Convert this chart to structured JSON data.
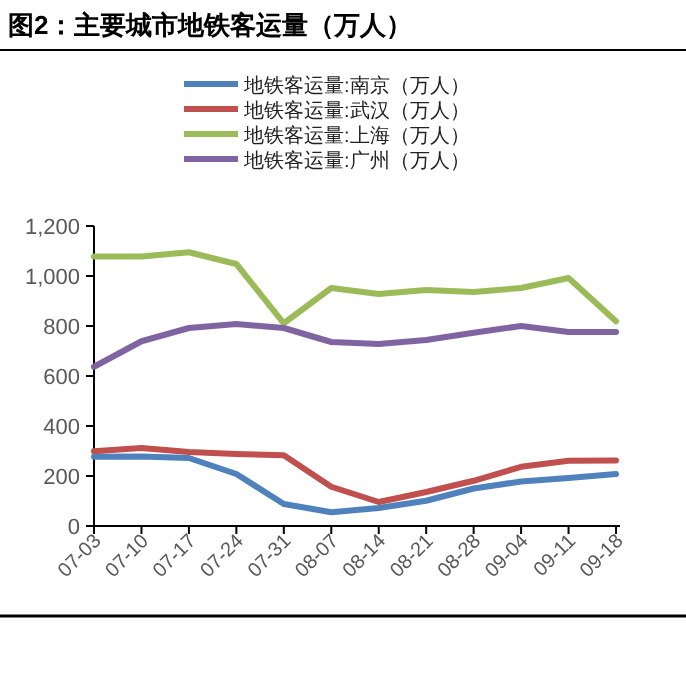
{
  "chart_data": {
    "type": "line",
    "title": "图2：主要城市地铁客运量（万人）",
    "categories": [
      "07-03",
      "07-10",
      "07-17",
      "07-24",
      "07-31",
      "08-07",
      "08-14",
      "08-21",
      "08-28",
      "09-04",
      "09-11",
      "09-18"
    ],
    "series": [
      {
        "name": "地铁客运量:南京（万人）",
        "color": "#4f81bd",
        "values": [
          277,
          278,
          272,
          208,
          88,
          55,
          72,
          101,
          150,
          178,
          192,
          208
        ]
      },
      {
        "name": "地铁客运量:武汉（万人）",
        "color": "#c0504d",
        "values": [
          299,
          312,
          296,
          288,
          283,
          157,
          96,
          136,
          181,
          237,
          261,
          262
        ]
      },
      {
        "name": "地铁客运量:上海（万人）",
        "color": "#9bbb59",
        "values": [
          1078,
          1078,
          1095,
          1048,
          811,
          952,
          928,
          944,
          936,
          952,
          992,
          819
        ]
      },
      {
        "name": "地铁客运量:广州（万人）",
        "color": "#8064a2",
        "values": [
          637,
          739,
          792,
          808,
          792,
          736,
          728,
          744,
          773,
          800,
          776,
          776
        ]
      }
    ],
    "ylim": [
      0,
      1200
    ],
    "yticks": [
      0,
      200,
      400,
      600,
      800,
      {
        "value": 1000,
        "label": "1,000"
      },
      {
        "value": 1200,
        "label": "1,200"
      }
    ],
    "legend": "top",
    "grid": false,
    "marker": "none",
    "line_style": "solid"
  }
}
